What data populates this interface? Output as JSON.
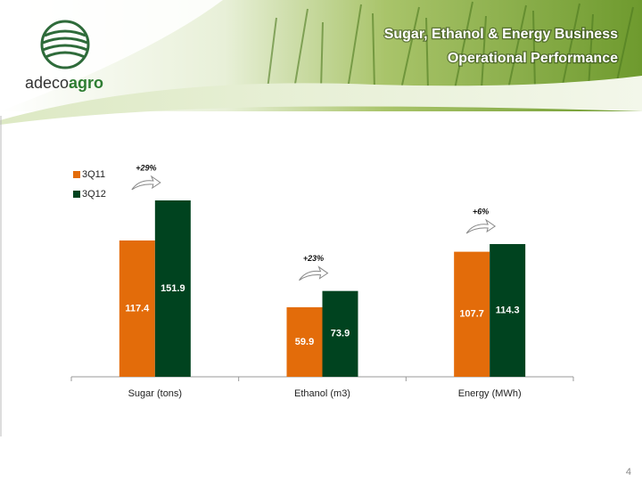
{
  "header": {
    "title": [
      "Sugar, Ethanol & Energy Business",
      "Operational Performance"
    ],
    "logo": [
      "adeco",
      "agro"
    ]
  },
  "page_number": "4",
  "chart_data": {
    "type": "bar",
    "categories": [
      "Sugar (tons)",
      "Ethanol (m3)",
      "Energy (MWh)"
    ],
    "series": [
      {
        "name": "3Q11",
        "color": "#e36c0a",
        "values": [
          117.4,
          59.9,
          107.7
        ]
      },
      {
        "name": "3Q12",
        "color": "#00431f",
        "values": [
          151.9,
          73.9,
          114.3
        ]
      }
    ],
    "annotations": [
      "+29%",
      "+23%",
      "+6%"
    ],
    "legend": "top-left"
  }
}
